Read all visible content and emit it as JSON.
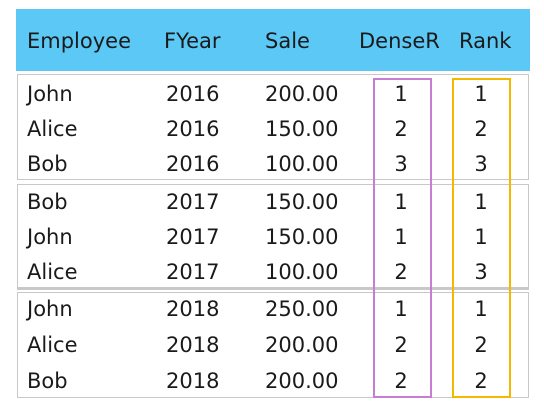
{
  "colors": {
    "header_bg": "#5bc8f5",
    "dense_rank_highlight": "#c77dd4",
    "rank_highlight": "#f5b800"
  },
  "columns": [
    "Employee",
    "FYear",
    "Sale",
    "DenseR",
    "Rank"
  ],
  "rows": [
    {
      "employee": "John",
      "fyear": "2016",
      "sale": "200.00",
      "dense_rank": "1",
      "rank": "1"
    },
    {
      "employee": "Alice",
      "fyear": "2016",
      "sale": "150.00",
      "dense_rank": "2",
      "rank": "2"
    },
    {
      "employee": "Bob",
      "fyear": "2016",
      "sale": "100.00",
      "dense_rank": "3",
      "rank": "3"
    },
    {
      "employee": "Bob",
      "fyear": "2017",
      "sale": "150.00",
      "dense_rank": "1",
      "rank": "1"
    },
    {
      "employee": "John",
      "fyear": "2017",
      "sale": "150.00",
      "dense_rank": "1",
      "rank": "1"
    },
    {
      "employee": "Alice",
      "fyear": "2017",
      "sale": "100.00",
      "dense_rank": "2",
      "rank": "3"
    },
    {
      "employee": "John",
      "fyear": "2018",
      "sale": "250.00",
      "dense_rank": "1",
      "rank": "1"
    },
    {
      "employee": "Alice",
      "fyear": "2018",
      "sale": "200.00",
      "dense_rank": "2",
      "rank": "2"
    },
    {
      "employee": "Bob",
      "fyear": "2018",
      "sale": "200.00",
      "dense_rank": "2",
      "rank": "2"
    }
  ]
}
